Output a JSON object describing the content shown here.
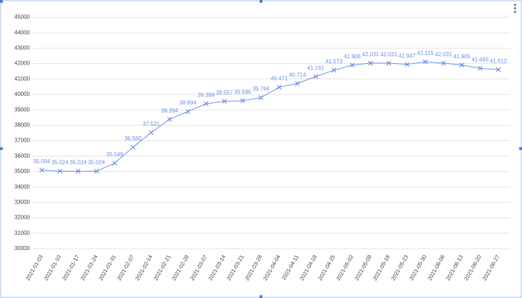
{
  "chart_data": {
    "type": "line",
    "categories": [
      "2021-01-03",
      "2021-01-10",
      "2021-01-17",
      "2021-01-24",
      "2021-01-31",
      "2021-02-07",
      "2021-02-14",
      "2021-02-21",
      "2021-02-28",
      "2021-03-07",
      "2021-03-14",
      "2021-03-21",
      "2021-03-28",
      "2021-04-04",
      "2021-04-11",
      "2021-04-18",
      "2021-04-25",
      "2021-05-02",
      "2021-05-09",
      "2021-05-16",
      "2021-05-23",
      "2021-05-30",
      "2021-06-06",
      "2021-06-13",
      "2021-06-20",
      "2021-06-27"
    ],
    "values": [
      35094,
      35024,
      35024,
      35024,
      35549,
      36580,
      37531,
      38394,
      38894,
      39399,
      39557,
      39596,
      39794,
      40471,
      40714,
      41161,
      41573,
      41906,
      42031,
      42031,
      41947,
      42115,
      42031,
      41905,
      41695,
      41612
    ],
    "value_labels": [
      "35.094",
      "35.024",
      "35.024",
      "35.024",
      "35.549",
      "36.580",
      "37.531",
      "38.394",
      "38.894",
      "39.399",
      "39.557",
      "39.596",
      "39.794",
      "40.471",
      "40.714",
      "41.161",
      "41.573",
      "41.906",
      "42.031",
      "42.031",
      "41.947",
      "42.115",
      "42.031",
      "41.905",
      "41.695",
      "41.612"
    ],
    "color": "#6b8fe6",
    "ylim": [
      30000,
      45000
    ],
    "yticks": [
      30000,
      31000,
      32000,
      33000,
      34000,
      35000,
      36000,
      37000,
      38000,
      39000,
      40000,
      41000,
      42000,
      43000,
      44000,
      45000
    ],
    "grid": true
  }
}
